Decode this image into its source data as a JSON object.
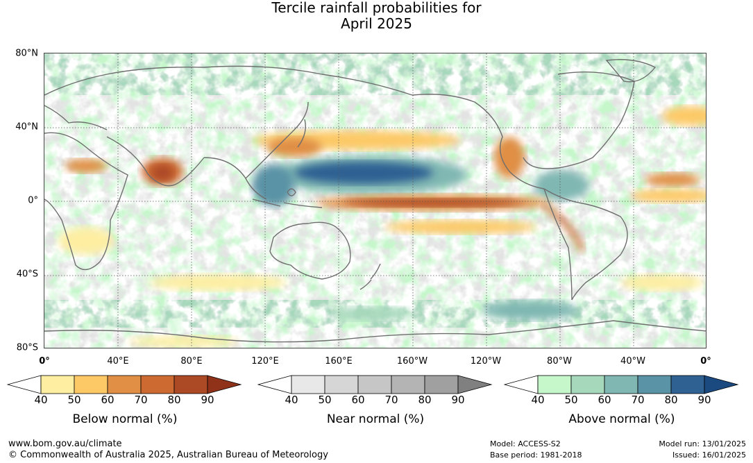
{
  "title_line1": "Tercile rainfall probabilities for",
  "title_line2": "April 2025",
  "lat_labels": [
    "80°N",
    "40°N",
    "0°",
    "40°S",
    "80°S"
  ],
  "lon_labels": [
    "0°",
    "40°E",
    "80°E",
    "120°E",
    "160°E",
    "160°W",
    "120°W",
    "80°W",
    "40°W",
    "0°"
  ],
  "legends": [
    {
      "title": "Below normal (%)",
      "ticks": [
        "40",
        "50",
        "60",
        "70",
        "80",
        "90"
      ],
      "colors": [
        "#ffffff",
        "#fdeea2",
        "#fdc966",
        "#e08f45",
        "#cc6a32",
        "#ad4a26",
        "#8f3219"
      ]
    },
    {
      "title": "Near normal (%)",
      "ticks": [
        "40",
        "50",
        "60",
        "70",
        "80",
        "90"
      ],
      "colors": [
        "#ffffff",
        "#e8e8e8",
        "#d6d6d6",
        "#c6c6c6",
        "#b4b4b4",
        "#a0a0a0",
        "#808080"
      ]
    },
    {
      "title": "Above normal (%)",
      "ticks": [
        "40",
        "50",
        "60",
        "70",
        "80",
        "90"
      ],
      "colors": [
        "#ffffff",
        "#c5f7cb",
        "#a6d8bc",
        "#80b7b2",
        "#5a93a6",
        "#2f6193",
        "#1a4a80"
      ]
    }
  ],
  "footer": {
    "url": "www.bom.gov.au/climate",
    "copyright": "© Commonwealth of Australia 2025, Australian Bureau of Meteorology",
    "model": "Model: ACCESS-S2",
    "base_period": "Base period: 1981-2018",
    "model_run": "Model run: 13/01/2025",
    "issued": "Issued: 16/01/2025"
  }
}
